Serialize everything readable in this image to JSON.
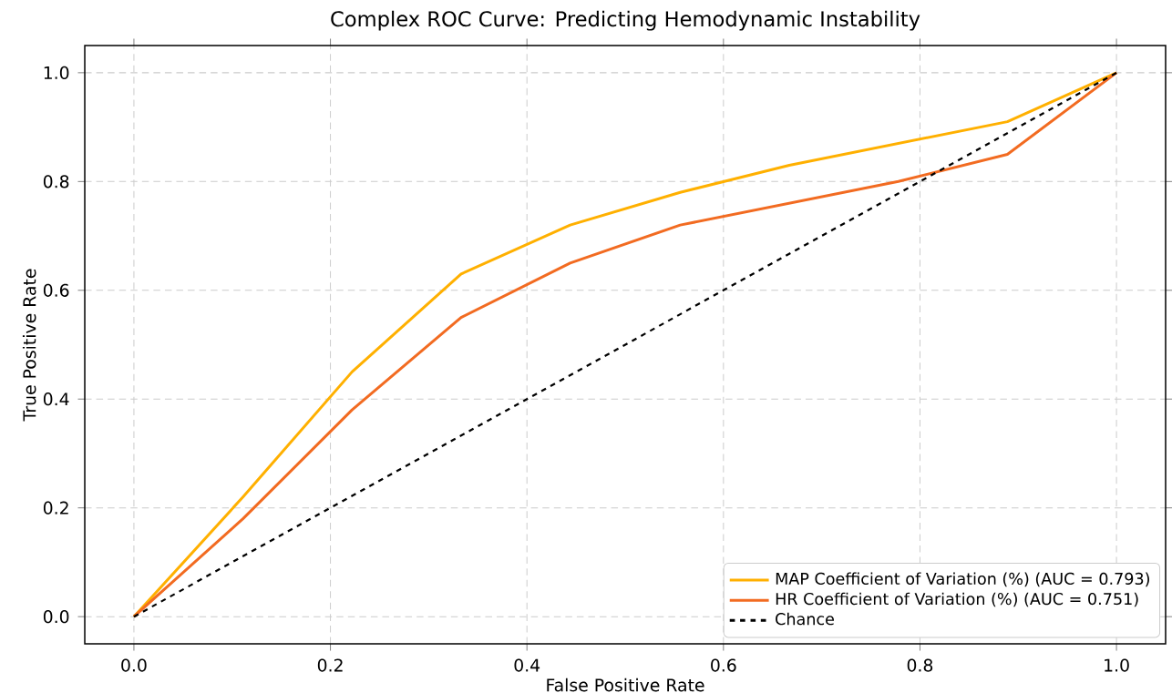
{
  "chart_data": {
    "type": "line",
    "title": "Complex ROC Curve: Predicting Hemodynamic Instability",
    "xlabel": "False Positive Rate",
    "ylabel": "True Positive Rate",
    "xlim": [
      -0.05,
      1.05
    ],
    "ylim": [
      -0.05,
      1.05
    ],
    "xticks": [
      {
        "value": 0,
        "label": "0.0"
      },
      0.2,
      0.4,
      0.6,
      0.8,
      {
        "value": 1,
        "label": "1.0"
      }
    ],
    "yticks": [
      {
        "value": 0,
        "label": "0.0"
      },
      0.2,
      0.4,
      0.6,
      0.8,
      {
        "value": 1,
        "label": "1.0"
      }
    ],
    "grid": true,
    "legend": "bottom right",
    "series": [
      {
        "name": "MAP Coefficient of Variation (%) (AUC = 0.793)",
        "color": "#ffb000",
        "x": [
          0,
          0.111,
          0.222,
          0.333,
          0.444,
          0.556,
          0.667,
          0.889,
          1
        ],
        "values": [
          0,
          0.22,
          0.45,
          0.63,
          0.72,
          0.78,
          0.83,
          0.91,
          1
        ]
      },
      {
        "name": "HR Coefficient of Variation (%) (AUC = 0.751)",
        "color": "#f26b21",
        "x": [
          0,
          0.111,
          0.222,
          0.333,
          0.444,
          0.556,
          0.778,
          0.889,
          1
        ],
        "values": [
          0,
          0.18,
          0.38,
          0.55,
          0.65,
          0.72,
          0.8,
          0.85,
          1
        ]
      },
      {
        "name": "Chance",
        "color": "#000000",
        "line_style": "dashed",
        "x": [
          0,
          1
        ],
        "values": [
          0,
          1
        ]
      }
    ]
  }
}
